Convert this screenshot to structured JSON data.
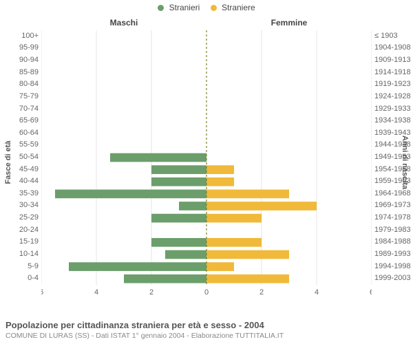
{
  "legend": {
    "male_label": "Stranieri",
    "female_label": "Straniere",
    "male_color": "#6b9e6b",
    "female_color": "#f0b93a"
  },
  "column_headers": {
    "male": "Maschi",
    "female": "Femmine"
  },
  "axis_titles": {
    "left": "Fasce di età",
    "right": "Anni di nascita"
  },
  "footer": {
    "title": "Popolazione per cittadinanza straniera per età e sesso - 2004",
    "subtitle": "COMUNE DI LURAS (SS) - Dati ISTAT 1° gennaio 2004 - Elaborazione TUTTITALIA.IT"
  },
  "chart": {
    "type": "population-pyramid",
    "x_max": 6,
    "x_ticks": [
      0,
      2,
      4,
      6
    ],
    "grid_color": "#e6e6e6",
    "mid_color": "#7e7e2b",
    "background": "#ffffff",
    "bar_relative_height": 0.72,
    "rows": [
      {
        "age": "0-4",
        "birth": "1999-2003",
        "m": 3,
        "f": 3
      },
      {
        "age": "5-9",
        "birth": "1994-1998",
        "m": 5,
        "f": 1
      },
      {
        "age": "10-14",
        "birth": "1989-1993",
        "m": 1.5,
        "f": 3
      },
      {
        "age": "15-19",
        "birth": "1984-1988",
        "m": 2,
        "f": 2
      },
      {
        "age": "20-24",
        "birth": "1979-1983",
        "m": 0,
        "f": 0
      },
      {
        "age": "25-29",
        "birth": "1974-1978",
        "m": 2,
        "f": 2
      },
      {
        "age": "30-34",
        "birth": "1969-1973",
        "m": 1,
        "f": 4
      },
      {
        "age": "35-39",
        "birth": "1964-1968",
        "m": 5.5,
        "f": 3
      },
      {
        "age": "40-44",
        "birth": "1959-1963",
        "m": 2,
        "f": 1
      },
      {
        "age": "45-49",
        "birth": "1954-1958",
        "m": 2,
        "f": 1
      },
      {
        "age": "50-54",
        "birth": "1949-1953",
        "m": 3.5,
        "f": 0
      },
      {
        "age": "55-59",
        "birth": "1944-1948",
        "m": 0,
        "f": 0
      },
      {
        "age": "60-64",
        "birth": "1939-1943",
        "m": 0,
        "f": 0
      },
      {
        "age": "65-69",
        "birth": "1934-1938",
        "m": 0,
        "f": 0
      },
      {
        "age": "70-74",
        "birth": "1929-1933",
        "m": 0,
        "f": 0
      },
      {
        "age": "75-79",
        "birth": "1924-1928",
        "m": 0,
        "f": 0
      },
      {
        "age": "80-84",
        "birth": "1919-1923",
        "m": 0,
        "f": 0
      },
      {
        "age": "85-89",
        "birth": "1914-1918",
        "m": 0,
        "f": 0
      },
      {
        "age": "90-94",
        "birth": "1909-1913",
        "m": 0,
        "f": 0
      },
      {
        "age": "95-99",
        "birth": "1904-1908",
        "m": 0,
        "f": 0
      },
      {
        "age": "100+",
        "birth": "≤ 1903",
        "m": 0,
        "f": 0
      }
    ]
  }
}
